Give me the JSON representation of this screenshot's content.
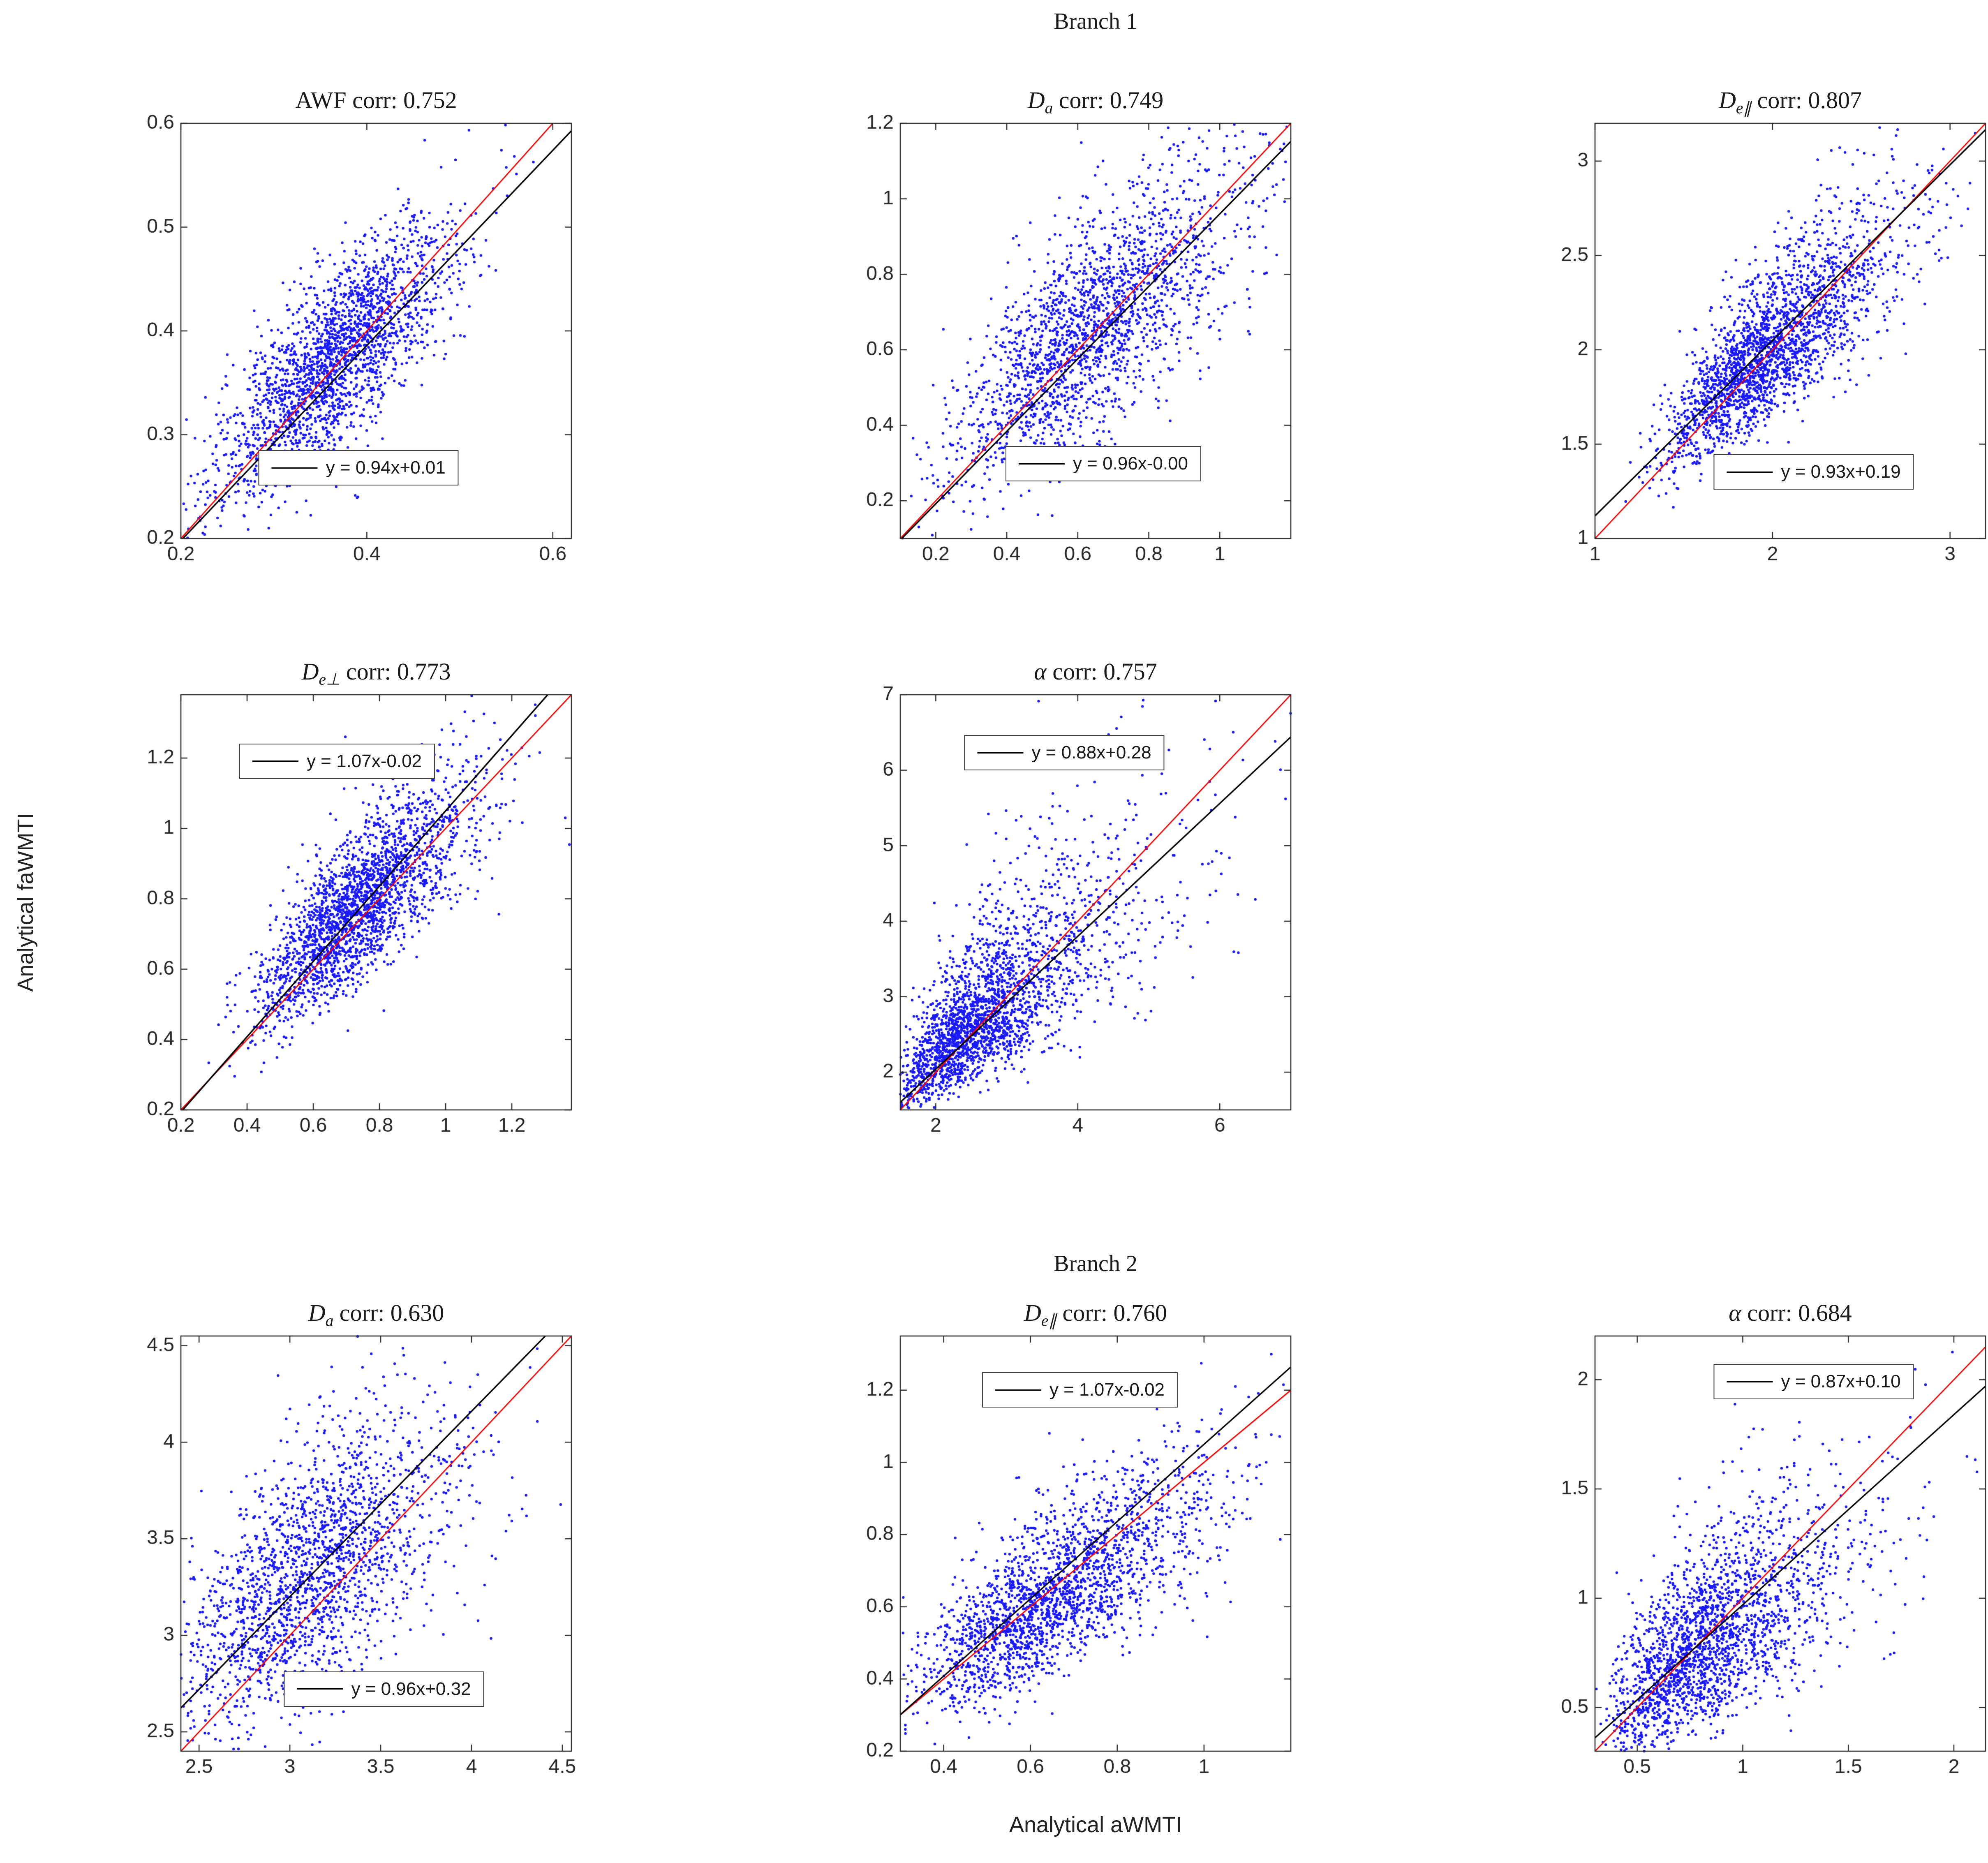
{
  "figure": {
    "branch1_title": "Branch 1",
    "branch2_title": "Branch 2",
    "ylabel": "Analytical faWMTI",
    "xlabel": "Analytical aWMTI",
    "colors": {
      "scatter": "#1A1AFF",
      "identity_line": "#FF0000",
      "fit_line": "#000000",
      "frame": "#262626",
      "tick_label": "#262626",
      "background": "#FFFFFF"
    }
  },
  "chart_data": [
    {
      "type": "scatter",
      "branch": 1,
      "grid": [
        0,
        0
      ],
      "title_symbol": "AWF",
      "title_sub": "",
      "title_rest": " corr: 0.752",
      "title_italic": false,
      "corr": 0.752,
      "fit": {
        "slope": 0.94,
        "intercept": 0.01,
        "label": "y = 0.94x+0.01"
      },
      "identity_line": true,
      "xlim": [
        0.2,
        0.62
      ],
      "ylim": [
        0.2,
        0.6
      ],
      "xticks": [
        0.2,
        0.4,
        0.6
      ],
      "xtick_labels": [
        "0.2",
        "0.4",
        "0.6"
      ],
      "yticks": [
        0.2,
        0.3,
        0.4,
        0.5,
        0.6
      ],
      "ytick_labels": [
        "0.2",
        "0.3",
        "0.4",
        "0.5",
        "0.6"
      ],
      "cluster": {
        "n": 2200,
        "mx": 0.365,
        "my": 0.372,
        "sx": 0.062,
        "sy": 0.065,
        "rho": 0.76,
        "skew": 0.0,
        "seed": 11
      },
      "legend_pos": {
        "cx": 0.455,
        "cy": 0.83
      }
    },
    {
      "type": "scatter",
      "branch": 1,
      "grid": [
        0,
        1
      ],
      "title_symbol": "D",
      "title_sub": "a",
      "title_rest": " corr: 0.749",
      "title_italic": true,
      "corr": 0.749,
      "fit": {
        "slope": 0.96,
        "intercept": -0.0,
        "label": "y = 0.96x-0.00"
      },
      "identity_line": true,
      "xlim": [
        0.1,
        1.2
      ],
      "ylim": [
        0.1,
        1.2
      ],
      "xticks": [
        0.2,
        0.4,
        0.6,
        0.8,
        1
      ],
      "xtick_labels": [
        "0.2",
        "0.4",
        "0.6",
        "0.8",
        "1"
      ],
      "yticks": [
        0.2,
        0.4,
        0.6,
        0.8,
        1,
        1.2
      ],
      "ytick_labels": [
        "0.2",
        "0.4",
        "0.6",
        "0.8",
        "1",
        "1.2"
      ],
      "cluster": {
        "n": 2000,
        "mx": 0.63,
        "my": 0.65,
        "sx": 0.2,
        "sy": 0.21,
        "rho": 0.75,
        "skew": 0.1,
        "seed": 23
      },
      "legend_pos": {
        "cx": 0.52,
        "cy": 0.82
      }
    },
    {
      "type": "scatter",
      "branch": 1,
      "grid": [
        0,
        2
      ],
      "title_symbol": "D",
      "title_sub": "e∥",
      "title_rest": " corr: 0.807",
      "title_italic": true,
      "corr": 0.807,
      "fit": {
        "slope": 0.93,
        "intercept": 0.19,
        "label": "y = 0.93x+0.19"
      },
      "identity_line": true,
      "xlim": [
        1.0,
        3.2
      ],
      "ylim": [
        1.0,
        3.2
      ],
      "xticks": [
        1,
        2,
        3
      ],
      "xtick_labels": [
        "1",
        "2",
        "3"
      ],
      "yticks": [
        1,
        1.5,
        2,
        2.5,
        3
      ],
      "ytick_labels": [
        "1",
        "1.5",
        "2",
        "2.5",
        "3"
      ],
      "cluster": {
        "n": 2300,
        "mx": 1.98,
        "my": 2.0,
        "sx": 0.33,
        "sy": 0.33,
        "rho": 0.81,
        "skew": 0.2,
        "seed": 37
      },
      "legend_pos": {
        "cx": 0.56,
        "cy": 0.84
      }
    },
    {
      "type": "scatter",
      "branch": 1,
      "grid": [
        1,
        0
      ],
      "title_symbol": "D",
      "title_sub": "e⊥",
      "title_rest": " corr: 0.773",
      "title_italic": true,
      "corr": 0.773,
      "fit": {
        "slope": 1.07,
        "intercept": -0.02,
        "label": "y = 1.07x-0.02"
      },
      "identity_line": true,
      "xlim": [
        0.2,
        1.38
      ],
      "ylim": [
        0.2,
        1.38
      ],
      "xticks": [
        0.2,
        0.4,
        0.6,
        0.8,
        1,
        1.2
      ],
      "xtick_labels": [
        "0.2",
        "0.4",
        "0.6",
        "0.8",
        "1",
        "1.2"
      ],
      "yticks": [
        0.2,
        0.4,
        0.6,
        0.8,
        1,
        1.2
      ],
      "ytick_labels": [
        "0.2",
        "0.4",
        "0.6",
        "0.8",
        "1",
        "1.2"
      ],
      "cluster": {
        "n": 2300,
        "mx": 0.74,
        "my": 0.78,
        "sx": 0.16,
        "sy": 0.17,
        "rho": 0.77,
        "skew": 0.1,
        "seed": 41
      },
      "legend_pos": {
        "cx": 0.4,
        "cy": 0.16
      }
    },
    {
      "type": "scatter",
      "branch": 1,
      "grid": [
        1,
        1
      ],
      "title_symbol": "α",
      "title_sub": "",
      "title_rest": " corr: 0.757",
      "title_italic": true,
      "corr": 0.757,
      "fit": {
        "slope": 0.88,
        "intercept": 0.28,
        "label": "y = 0.88x+0.28"
      },
      "identity_line": true,
      "xlim": [
        1.5,
        7.0
      ],
      "ylim": [
        1.5,
        7.0
      ],
      "xticks": [
        2,
        4,
        6
      ],
      "xtick_labels": [
        "2",
        "4",
        "6"
      ],
      "yticks": [
        2,
        3,
        4,
        5,
        6,
        7
      ],
      "ytick_labels": [
        "2",
        "3",
        "4",
        "5",
        "6",
        "7"
      ],
      "cluster": {
        "n": 2300,
        "mx": 2.7,
        "my": 2.8,
        "sx": 0.8,
        "sy": 0.8,
        "rho": 0.76,
        "skew": 0.45,
        "seed": 53
      },
      "legend_pos": {
        "cx": 0.42,
        "cy": 0.14
      }
    },
    {
      "type": "scatter",
      "branch": 2,
      "grid": [
        2,
        0
      ],
      "title_symbol": "D",
      "title_sub": "a",
      "title_rest": " corr: 0.630",
      "title_italic": true,
      "corr": 0.63,
      "fit": {
        "slope": 0.96,
        "intercept": 0.32,
        "label": "y = 0.96x+0.32"
      },
      "identity_line": true,
      "xlim": [
        2.4,
        4.55
      ],
      "ylim": [
        2.4,
        4.55
      ],
      "xticks": [
        2.5,
        3,
        3.5,
        4,
        4.5
      ],
      "xtick_labels": [
        "2.5",
        "3",
        "3.5",
        "4",
        "4.5"
      ],
      "yticks": [
        2.5,
        3,
        3.5,
        4,
        4.5
      ],
      "ytick_labels": [
        "2.5",
        "3",
        "3.5",
        "4",
        "4.5"
      ],
      "cluster": {
        "n": 1900,
        "mx": 3.12,
        "my": 3.32,
        "sx": 0.38,
        "sy": 0.42,
        "rho": 0.63,
        "skew": 0.1,
        "seed": 67
      },
      "legend_pos": {
        "cx": 0.52,
        "cy": 0.85
      }
    },
    {
      "type": "scatter",
      "branch": 2,
      "grid": [
        2,
        1
      ],
      "title_symbol": "D",
      "title_sub": "e∥",
      "title_rest": " corr: 0.760",
      "title_italic": true,
      "corr": 0.76,
      "fit": {
        "slope": 1.07,
        "intercept": -0.02,
        "label": "y = 1.07x-0.02"
      },
      "identity_line": true,
      "xlim": [
        0.3,
        1.2
      ],
      "ylim": [
        0.2,
        1.35
      ],
      "xticks": [
        0.4,
        0.6,
        0.8,
        1
      ],
      "xtick_labels": [
        "0.4",
        "0.6",
        "0.8",
        "1"
      ],
      "yticks": [
        0.2,
        0.4,
        0.6,
        0.8,
        1,
        1.2
      ],
      "ytick_labels": [
        "0.2",
        "0.4",
        "0.6",
        "0.8",
        "1",
        "1.2"
      ],
      "cluster": {
        "n": 2100,
        "mx": 0.66,
        "my": 0.64,
        "sx": 0.17,
        "sy": 0.17,
        "rho": 0.76,
        "skew": 0.15,
        "seed": 71
      },
      "legend_pos": {
        "cx": 0.46,
        "cy": 0.13
      }
    },
    {
      "type": "scatter",
      "branch": 2,
      "grid": [
        2,
        2
      ],
      "title_symbol": "α",
      "title_sub": "",
      "title_rest": " corr: 0.684",
      "title_italic": true,
      "corr": 0.684,
      "fit": {
        "slope": 0.87,
        "intercept": 0.1,
        "label": "y = 0.87x+0.10"
      },
      "identity_line": true,
      "xlim": [
        0.3,
        2.15
      ],
      "ylim": [
        0.3,
        2.2
      ],
      "xticks": [
        0.5,
        1,
        1.5,
        2
      ],
      "xtick_labels": [
        "0.5",
        "1",
        "1.5",
        "2"
      ],
      "yticks": [
        0.5,
        1,
        1.5,
        2
      ],
      "ytick_labels": [
        "0.5",
        "1",
        "1.5",
        "2"
      ],
      "cluster": {
        "n": 2100,
        "mx": 0.84,
        "my": 0.8,
        "sx": 0.29,
        "sy": 0.29,
        "rho": 0.68,
        "skew": 0.3,
        "seed": 83
      },
      "legend_pos": {
        "cx": 0.56,
        "cy": 0.11
      }
    }
  ]
}
